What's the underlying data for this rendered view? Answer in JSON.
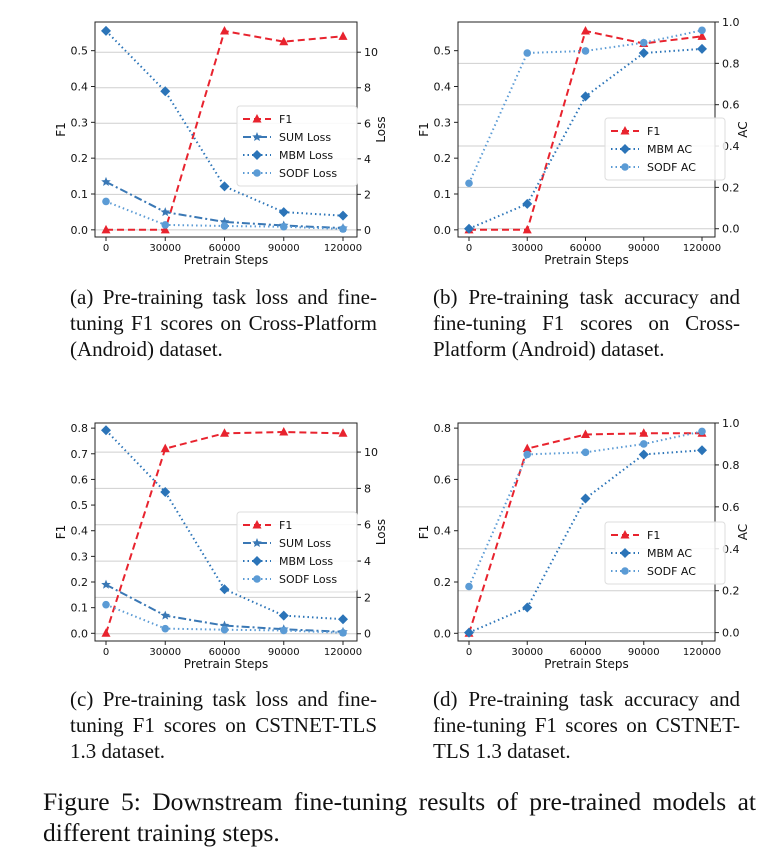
{
  "chart_data": [
    {
      "type": "line",
      "panel": "a",
      "x": [
        0,
        30000,
        60000,
        90000,
        120000
      ],
      "x_ticks": [
        "0",
        "30000",
        "60000",
        "90000",
        "120000"
      ],
      "xlabel": "Pretrain Steps",
      "ylabel_left": "F1",
      "ylabel_right": "Loss",
      "ylim_left": [
        -0.02,
        0.58
      ],
      "ylim_right": [
        -0.4,
        11.7
      ],
      "yticks_left": [
        "0.0",
        "0.1",
        "0.2",
        "0.3",
        "0.4",
        "0.5"
      ],
      "yticks_right": [
        "0",
        "2",
        "4",
        "6",
        "8",
        "10"
      ],
      "legend_position": "center-right",
      "grid": "horizontal, right axis",
      "series": [
        {
          "name": "F1",
          "axis": "left",
          "color": "#e8232e",
          "style": "dashed",
          "marker": "triangle",
          "values": [
            0.0,
            0.0,
            0.555,
            0.525,
            0.54
          ]
        },
        {
          "name": "SUM Loss",
          "axis": "right",
          "color": "#3a78b5",
          "style": "dashdot",
          "marker": "star",
          "values": [
            2.7,
            1.0,
            0.45,
            0.25,
            0.1
          ]
        },
        {
          "name": "MBM Loss",
          "axis": "right",
          "color": "#2b74b8",
          "style": "dotted",
          "marker": "diamond",
          "values": [
            11.2,
            7.8,
            2.45,
            1.0,
            0.8
          ]
        },
        {
          "name": "SODF Loss",
          "axis": "right",
          "color": "#5b9bd5",
          "style": "dotted",
          "marker": "circle",
          "values": [
            1.6,
            0.28,
            0.22,
            0.18,
            0.05
          ]
        }
      ]
    },
    {
      "type": "line",
      "panel": "b",
      "x": [
        0,
        30000,
        60000,
        90000,
        120000
      ],
      "x_ticks": [
        "0",
        "30000",
        "60000",
        "90000",
        "120000"
      ],
      "xlabel": "Pretrain Steps",
      "ylabel_left": "F1",
      "ylabel_right": "AC",
      "ylim_left": [
        -0.02,
        0.58
      ],
      "ylim_right": [
        -0.04,
        1.0
      ],
      "yticks_left": [
        "0.0",
        "0.1",
        "0.2",
        "0.3",
        "0.4",
        "0.5"
      ],
      "yticks_right": [
        "0.0",
        "0.2",
        "0.4",
        "0.6",
        "0.8",
        "1.0"
      ],
      "legend_position": "center-right",
      "grid": "horizontal, right axis",
      "series": [
        {
          "name": "F1",
          "axis": "left",
          "color": "#e8232e",
          "style": "dashed",
          "marker": "triangle",
          "values": [
            0.0,
            0.0,
            0.555,
            0.52,
            0.54
          ]
        },
        {
          "name": "MBM AC",
          "axis": "right",
          "color": "#2b74b8",
          "style": "dotted",
          "marker": "diamond",
          "values": [
            0.0,
            0.12,
            0.64,
            0.85,
            0.87
          ]
        },
        {
          "name": "SODF AC",
          "axis": "right",
          "color": "#5b9bd5",
          "style": "dotted",
          "marker": "circle",
          "values": [
            0.22,
            0.85,
            0.86,
            0.9,
            0.96
          ]
        }
      ]
    },
    {
      "type": "line",
      "panel": "c",
      "x": [
        0,
        30000,
        60000,
        90000,
        120000
      ],
      "x_ticks": [
        "0",
        "30000",
        "60000",
        "90000",
        "120000"
      ],
      "xlabel": "Pretrain Steps",
      "ylabel_left": "F1",
      "ylabel_right": "Loss",
      "ylim_left": [
        -0.03,
        0.82
      ],
      "ylim_right": [
        -0.4,
        11.6
      ],
      "yticks_left": [
        "0.0",
        "0.1",
        "0.2",
        "0.3",
        "0.4",
        "0.5",
        "0.6",
        "0.7",
        "0.8"
      ],
      "yticks_right": [
        "0",
        "2",
        "4",
        "6",
        "8",
        "10"
      ],
      "legend_position": "center-right",
      "grid": "horizontal, right axis",
      "series": [
        {
          "name": "F1",
          "axis": "left",
          "color": "#e8232e",
          "style": "dashed",
          "marker": "triangle",
          "values": [
            0.0,
            0.72,
            0.78,
            0.785,
            0.78
          ]
        },
        {
          "name": "SUM Loss",
          "axis": "right",
          "color": "#3a78b5",
          "style": "dashdot",
          "marker": "star",
          "values": [
            2.7,
            1.0,
            0.45,
            0.25,
            0.1
          ]
        },
        {
          "name": "MBM Loss",
          "axis": "right",
          "color": "#2b74b8",
          "style": "dotted",
          "marker": "diamond",
          "values": [
            11.2,
            7.8,
            2.45,
            1.0,
            0.8
          ]
        },
        {
          "name": "SODF Loss",
          "axis": "right",
          "color": "#5b9bd5",
          "style": "dotted",
          "marker": "circle",
          "values": [
            1.6,
            0.28,
            0.22,
            0.18,
            0.05
          ]
        }
      ]
    },
    {
      "type": "line",
      "panel": "d",
      "x": [
        0,
        30000,
        60000,
        90000,
        120000
      ],
      "x_ticks": [
        "0",
        "30000",
        "60000",
        "90000",
        "120000"
      ],
      "xlabel": "Pretrain Steps",
      "ylabel_left": "F1",
      "ylabel_right": "AC",
      "ylim_left": [
        -0.03,
        0.82
      ],
      "ylim_right": [
        -0.04,
        1.0
      ],
      "yticks_left": [
        "0.0",
        "0.2",
        "0.4",
        "0.6",
        "0.8"
      ],
      "yticks_right": [
        "0.0",
        "0.2",
        "0.4",
        "0.6",
        "0.8",
        "1.0"
      ],
      "legend_position": "center-right",
      "grid": "horizontal, right axis",
      "series": [
        {
          "name": "F1",
          "axis": "left",
          "color": "#e8232e",
          "style": "dashed",
          "marker": "triangle",
          "values": [
            0.0,
            0.72,
            0.775,
            0.78,
            0.78
          ]
        },
        {
          "name": "MBM AC",
          "axis": "right",
          "color": "#2b74b8",
          "style": "dotted",
          "marker": "diamond",
          "values": [
            0.0,
            0.12,
            0.64,
            0.85,
            0.87
          ]
        },
        {
          "name": "SODF AC",
          "axis": "right",
          "color": "#5b9bd5",
          "style": "dotted",
          "marker": "circle",
          "values": [
            0.22,
            0.85,
            0.86,
            0.9,
            0.96
          ]
        }
      ]
    }
  ],
  "captions": {
    "a": "(a) Pre-training task loss and fine-tuning F1 scores on Cross-Platform (Android) dataset.",
    "b": "(b) Pre-training task accuracy and fine-tuning F1 scores on Cross-Platform (Android) dataset.",
    "c": "(c) Pre-training task loss and fine-tuning F1 scores on CSTNET-TLS 1.3 dataset.",
    "d": "(d) Pre-training task accuracy and fine-tuning F1 scores on CSTNET-TLS 1.3 dataset."
  },
  "figure_caption": "Figure 5: Downstream fine-tuning results of pre-trained models at different training steps."
}
